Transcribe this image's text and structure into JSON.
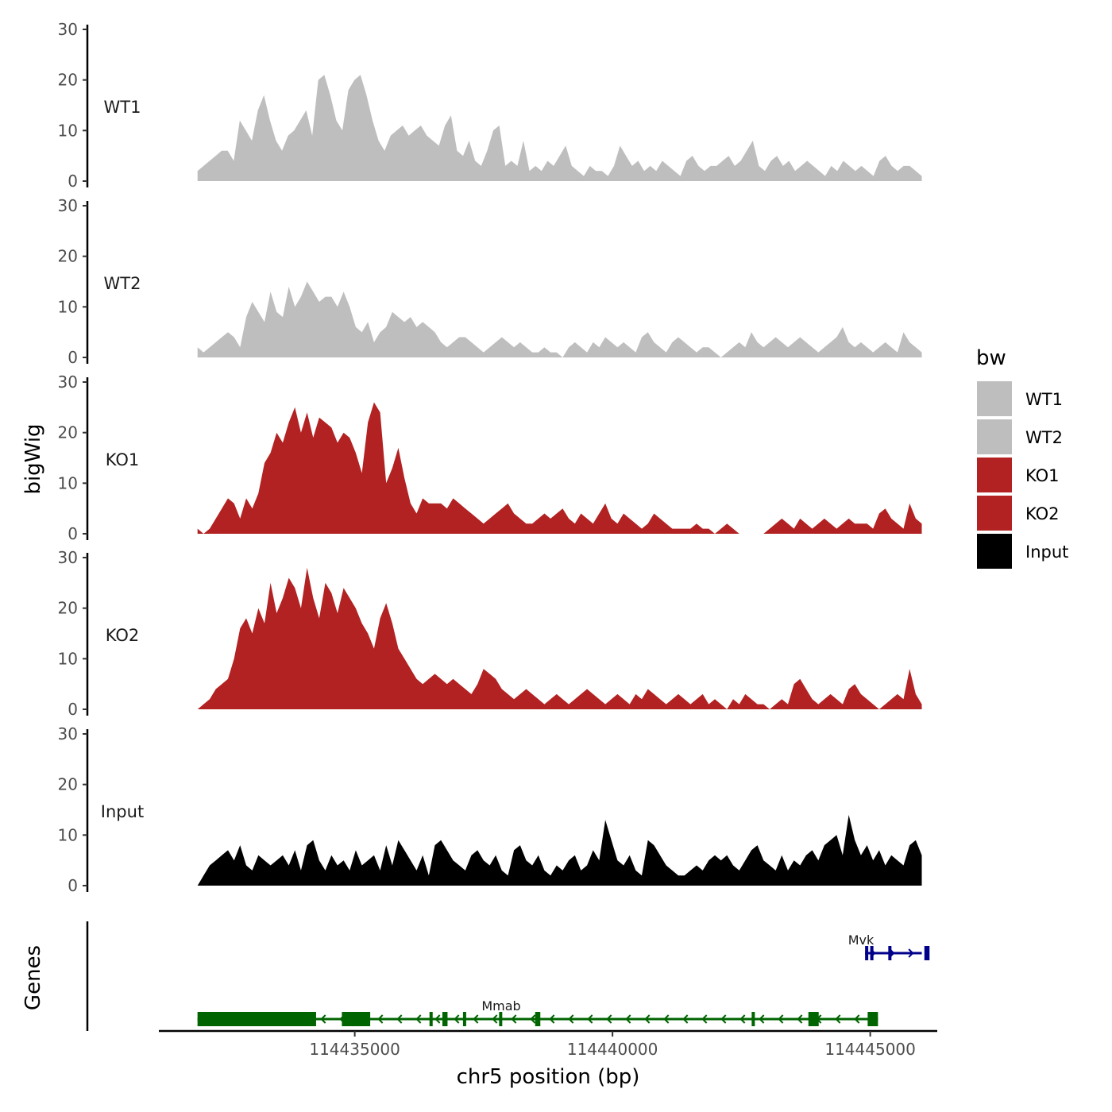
{
  "chart_data": {
    "type": "area",
    "chromosome": "chr5",
    "xlabel": "chr5 position (bp)",
    "ylabel": "bigWig",
    "gene_track_label": "Genes",
    "xlim": [
      114431200,
      114446300
    ],
    "ylim": [
      0,
      30
    ],
    "y_ticks": [
      "0",
      "10",
      "20",
      "30"
    ],
    "x_ticks": [
      {
        "value": 114435000,
        "label": "114435000"
      },
      {
        "value": 114440000,
        "label": "114440000"
      },
      {
        "value": 114445000,
        "label": "114445000"
      }
    ],
    "region": {
      "start": 114431950,
      "end": 114446000
    },
    "tracks": [
      {
        "name": "WT1",
        "color": "#bebebe",
        "values": [
          2,
          3,
          4,
          5,
          6,
          6,
          4,
          12,
          10,
          8,
          14,
          17,
          12,
          8,
          6,
          9,
          10,
          12,
          14,
          9,
          20,
          21,
          17,
          12,
          10,
          18,
          20,
          21,
          17,
          12,
          8,
          6,
          9,
          10,
          11,
          9,
          10,
          11,
          9,
          8,
          7,
          11,
          13,
          6,
          5,
          8,
          4,
          3,
          6,
          10,
          11,
          3,
          4,
          3,
          8,
          2,
          3,
          2,
          4,
          3,
          5,
          7,
          3,
          2,
          1,
          3,
          2,
          2,
          1,
          3,
          7,
          5,
          3,
          4,
          2,
          3,
          2,
          4,
          3,
          2,
          1,
          4,
          5,
          3,
          2,
          3,
          3,
          4,
          5,
          3,
          4,
          6,
          8,
          3,
          2,
          4,
          5,
          3,
          4,
          2,
          3,
          4,
          3,
          2,
          1,
          3,
          2,
          4,
          3,
          2,
          3,
          2,
          1,
          4,
          5,
          3,
          2,
          3,
          3,
          2,
          1
        ]
      },
      {
        "name": "WT2",
        "color": "#bebebe",
        "values": [
          2,
          1,
          2,
          3,
          4,
          5,
          4,
          2,
          8,
          11,
          9,
          7,
          13,
          9,
          8,
          14,
          10,
          12,
          15,
          13,
          11,
          12,
          12,
          10,
          13,
          10,
          6,
          5,
          7,
          3,
          5,
          6,
          9,
          8,
          7,
          8,
          6,
          7,
          6,
          5,
          3,
          2,
          3,
          4,
          4,
          3,
          2,
          1,
          2,
          3,
          4,
          3,
          2,
          3,
          2,
          1,
          1,
          2,
          1,
          1,
          0,
          2,
          3,
          2,
          1,
          3,
          2,
          4,
          3,
          2,
          3,
          2,
          1,
          4,
          5,
          3,
          2,
          1,
          3,
          4,
          3,
          2,
          1,
          2,
          2,
          1,
          0,
          1,
          2,
          3,
          2,
          5,
          3,
          2,
          3,
          4,
          3,
          2,
          3,
          4,
          3,
          2,
          1,
          2,
          3,
          4,
          6,
          3,
          2,
          3,
          2,
          1,
          2,
          3,
          2,
          1,
          5,
          3,
          2,
          1
        ]
      },
      {
        "name": "KO1",
        "color": "#b22222",
        "values": [
          1,
          0,
          1,
          3,
          5,
          7,
          6,
          3,
          7,
          5,
          8,
          14,
          16,
          20,
          18,
          22,
          25,
          20,
          24,
          19,
          23,
          22,
          21,
          18,
          20,
          19,
          16,
          12,
          22,
          26,
          24,
          10,
          13,
          17,
          11,
          6,
          4,
          7,
          6,
          6,
          6,
          5,
          7,
          6,
          5,
          4,
          3,
          2,
          3,
          4,
          5,
          6,
          4,
          3,
          2,
          2,
          3,
          4,
          3,
          4,
          5,
          3,
          2,
          4,
          3,
          2,
          4,
          6,
          3,
          2,
          4,
          3,
          2,
          1,
          2,
          4,
          3,
          2,
          1,
          1,
          1,
          1,
          2,
          1,
          1,
          0,
          1,
          2,
          1,
          0,
          0,
          0,
          0,
          0,
          1,
          2,
          3,
          2,
          1,
          3,
          2,
          1,
          2,
          3,
          2,
          1,
          2,
          3,
          2,
          2,
          2,
          1,
          4,
          5,
          3,
          2,
          1,
          6,
          3,
          2
        ]
      },
      {
        "name": "KO2",
        "color": "#b22222",
        "values": [
          0,
          1,
          2,
          4,
          5,
          6,
          10,
          16,
          18,
          15,
          20,
          17,
          25,
          19,
          22,
          26,
          24,
          20,
          28,
          22,
          18,
          25,
          23,
          19,
          24,
          22,
          20,
          17,
          15,
          12,
          18,
          21,
          17,
          12,
          10,
          8,
          6,
          5,
          6,
          7,
          6,
          5,
          6,
          5,
          4,
          3,
          5,
          8,
          7,
          6,
          4,
          3,
          2,
          3,
          4,
          3,
          2,
          1,
          2,
          3,
          2,
          1,
          2,
          3,
          4,
          3,
          2,
          1,
          2,
          3,
          2,
          1,
          3,
          2,
          4,
          3,
          2,
          1,
          2,
          3,
          2,
          1,
          2,
          3,
          1,
          2,
          1,
          0,
          2,
          1,
          3,
          2,
          1,
          1,
          0,
          1,
          2,
          1,
          5,
          6,
          4,
          2,
          1,
          2,
          3,
          2,
          1,
          4,
          5,
          3,
          2,
          1,
          0,
          1,
          2,
          3,
          2,
          8,
          3,
          1
        ]
      },
      {
        "name": "Input",
        "color": "#000000",
        "values": [
          0,
          2,
          4,
          5,
          6,
          7,
          5,
          8,
          4,
          3,
          6,
          5,
          4,
          5,
          6,
          4,
          7,
          3,
          8,
          9,
          5,
          3,
          6,
          4,
          5,
          3,
          7,
          4,
          5,
          6,
          3,
          8,
          4,
          9,
          7,
          5,
          3,
          6,
          2,
          8,
          9,
          7,
          5,
          4,
          3,
          6,
          7,
          5,
          4,
          6,
          3,
          2,
          7,
          8,
          5,
          4,
          6,
          3,
          2,
          4,
          3,
          5,
          6,
          3,
          4,
          7,
          5,
          13,
          9,
          5,
          4,
          6,
          3,
          2,
          9,
          8,
          6,
          4,
          3,
          2,
          2,
          3,
          4,
          3,
          5,
          6,
          5,
          6,
          4,
          3,
          5,
          7,
          8,
          5,
          4,
          3,
          6,
          3,
          5,
          4,
          6,
          7,
          5,
          8,
          9,
          10,
          6,
          14,
          9,
          6,
          8,
          5,
          7,
          4,
          6,
          5,
          4,
          8,
          9,
          6
        ]
      }
    ],
    "genes": [
      {
        "name": "Mmab",
        "strand": "-",
        "color": "#006400",
        "start": 114431950,
        "end": 114445150,
        "exons": [
          [
            114431950,
            114434250
          ],
          [
            114434750,
            114435300
          ],
          [
            114436450,
            114436500
          ],
          [
            114436700,
            114436800
          ],
          [
            114437100,
            114437150
          ],
          [
            114437800,
            114437850
          ],
          [
            114438500,
            114438600
          ],
          [
            114442700,
            114442750
          ],
          [
            114443800,
            114444000
          ],
          [
            114444950,
            114445150
          ]
        ]
      },
      {
        "name": "Mvk",
        "strand": "+",
        "color": "#00008b",
        "start": 114444900,
        "end": 114446000,
        "exons": [
          [
            114444900,
            114444950
          ],
          [
            114445000,
            114445050
          ],
          [
            114445350,
            114445400
          ],
          [
            114446050,
            114446150
          ]
        ]
      }
    ],
    "legend": {
      "title": "bw",
      "entries": [
        {
          "label": "WT1",
          "color": "#bebebe"
        },
        {
          "label": "WT2",
          "color": "#bebebe"
        },
        {
          "label": "KO1",
          "color": "#b22222"
        },
        {
          "label": "KO2",
          "color": "#b22222"
        },
        {
          "label": "Input",
          "color": "#000000"
        }
      ]
    }
  }
}
